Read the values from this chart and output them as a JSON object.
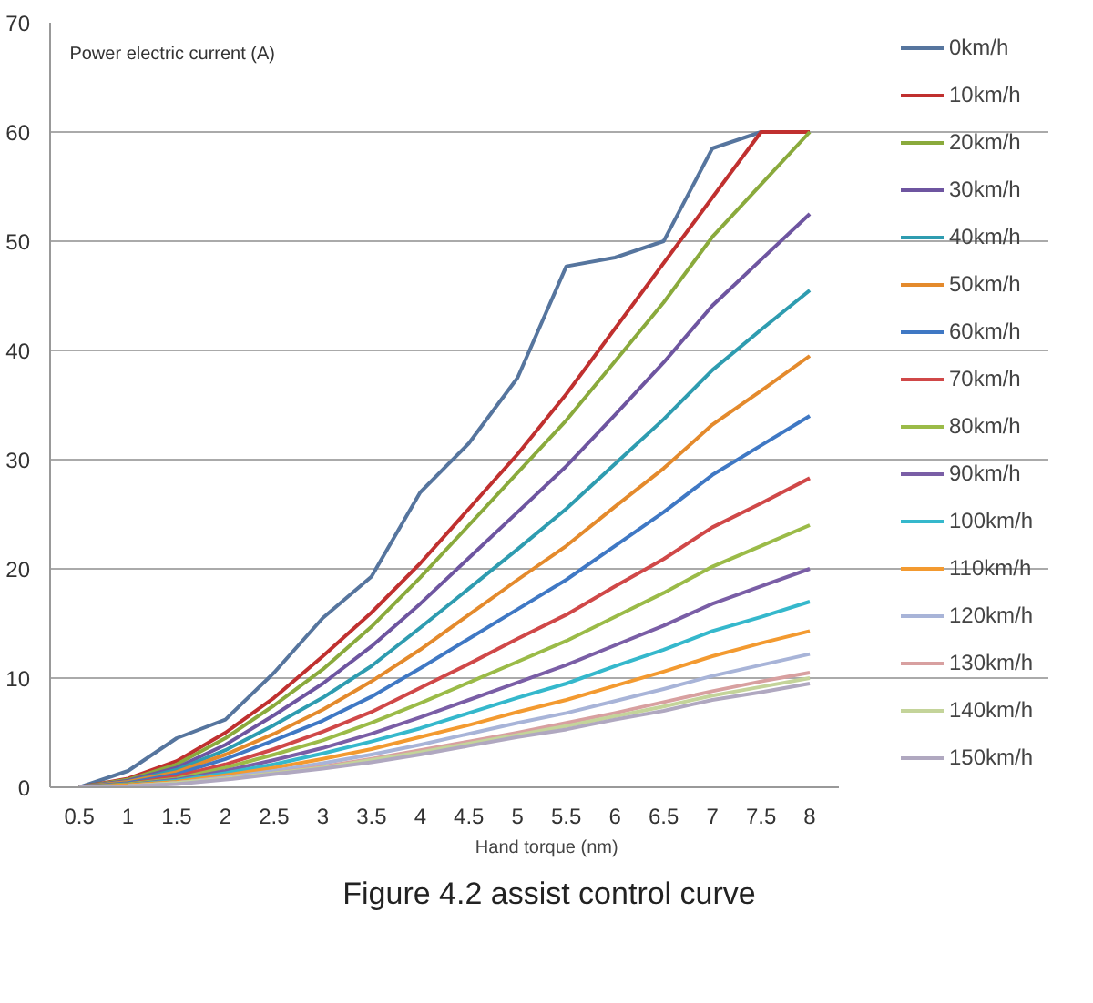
{
  "chart_data": {
    "type": "line",
    "title": "Figure 4.2 assist control curve",
    "xlabel": "Hand torque  (nm)",
    "ylabel": "Power electric current   (A)",
    "categories": [
      "0.5",
      "1",
      "1.5",
      "2",
      "2.5",
      "3",
      "3.5",
      "4",
      "4.5",
      "5",
      "5.5",
      "6",
      "6.5",
      "7",
      "7.5",
      "8"
    ],
    "ylim": [
      0,
      70
    ],
    "yticks": [
      0,
      10,
      20,
      30,
      40,
      50,
      60,
      70
    ],
    "grid": "y",
    "legend": "right",
    "marker": "none",
    "line_style": "solid",
    "series": [
      {
        "name": "0km/h",
        "color": "#56759e",
        "values": [
          0,
          1.5,
          4.5,
          6.2,
          10.5,
          15.5,
          19.3,
          27,
          31.5,
          37.5,
          47.7,
          48.5,
          50,
          58.5,
          60,
          60
        ]
      },
      {
        "name": "10km/h",
        "color": "#c0302f",
        "values": [
          0,
          0.8,
          2.4,
          5,
          8.2,
          12,
          16,
          20.5,
          25.5,
          30.5,
          36,
          42,
          48,
          54,
          60,
          60
        ]
      },
      {
        "name": "20km/h",
        "color": "#8aaa3c",
        "values": [
          0,
          0.7,
          2.1,
          4.5,
          7.5,
          10.8,
          14.7,
          19.2,
          24,
          28.8,
          33.6,
          39,
          44.4,
          50.4,
          55.2,
          60
        ]
      },
      {
        "name": "30km/h",
        "color": "#6e55a0",
        "values": [
          0,
          0.6,
          1.8,
          3.9,
          6.6,
          9.5,
          12.9,
          16.8,
          21,
          25.2,
          29.4,
          34.1,
          38.9,
          44.1,
          48.3,
          52.5
        ]
      },
      {
        "name": "40km/h",
        "color": "#2e9cb0",
        "values": [
          0,
          0.5,
          1.6,
          3.4,
          5.7,
          8.2,
          11.1,
          14.6,
          18.2,
          21.8,
          25.5,
          29.6,
          33.7,
          38.2,
          41.9,
          45.5
        ]
      },
      {
        "name": "50km/h",
        "color": "#e48a2c",
        "values": [
          0,
          0.5,
          1.4,
          3,
          4.9,
          7.1,
          9.7,
          12.6,
          15.8,
          19,
          22.1,
          25.7,
          29.2,
          33.2,
          36.3,
          39.5
        ]
      },
      {
        "name": "60km/h",
        "color": "#3f78c4",
        "values": [
          0,
          0.4,
          1.2,
          2.6,
          4.3,
          6.1,
          8.3,
          10.9,
          13.6,
          16.3,
          19,
          22.1,
          25.2,
          28.6,
          31.3,
          34
        ]
      },
      {
        "name": "70km/h",
        "color": "#d04848",
        "values": [
          0,
          0.3,
          1,
          2.1,
          3.5,
          5.1,
          6.9,
          9.1,
          11.3,
          13.6,
          15.8,
          18.4,
          20.9,
          23.8,
          26,
          28.3
        ]
      },
      {
        "name": "80km/h",
        "color": "#9bbb48",
        "values": [
          0,
          0.3,
          0.8,
          1.8,
          3,
          4.3,
          5.9,
          7.7,
          9.6,
          11.5,
          13.4,
          15.6,
          17.8,
          20.2,
          22.1,
          24
        ]
      },
      {
        "name": "90km/h",
        "color": "#7a5ea6",
        "values": [
          0,
          0.2,
          0.7,
          1.5,
          2.5,
          3.6,
          4.9,
          6.4,
          8,
          9.6,
          11.2,
          13,
          14.8,
          16.8,
          18.4,
          20
        ]
      },
      {
        "name": "100km/h",
        "color": "#35b8cc",
        "values": [
          0,
          0.2,
          0.6,
          1.3,
          2.1,
          3.1,
          4.2,
          5.4,
          6.8,
          8.2,
          9.5,
          11.1,
          12.6,
          14.3,
          15.6,
          17
        ]
      },
      {
        "name": "110km/h",
        "color": "#f39a30",
        "values": [
          0,
          0.2,
          0.5,
          1.1,
          1.8,
          2.6,
          3.5,
          4.6,
          5.7,
          6.9,
          8,
          9.3,
          10.6,
          12,
          13.2,
          14.3
        ]
      },
      {
        "name": "120km/h",
        "color": "#a8b4d8",
        "values": [
          0,
          0.1,
          0.4,
          0.9,
          1.5,
          2.2,
          3,
          3.9,
          4.9,
          5.9,
          6.8,
          7.9,
          9,
          10.2,
          11.2,
          12.2
        ]
      },
      {
        "name": "130km/h",
        "color": "#d8a0a0",
        "values": [
          0,
          0.1,
          0.4,
          0.8,
          1.3,
          1.9,
          2.6,
          3.4,
          4.2,
          5,
          5.9,
          6.8,
          7.8,
          8.8,
          9.7,
          10.5
        ]
      },
      {
        "name": "140km/h",
        "color": "#c4d49a",
        "values": [
          0,
          0.1,
          0.4,
          0.8,
          1.3,
          1.8,
          2.5,
          3.2,
          4,
          4.8,
          5.6,
          6.5,
          7.4,
          8.4,
          9.2,
          10
        ]
      },
      {
        "name": "150km/h",
        "color": "#b0a8c0",
        "values": [
          0,
          0.1,
          0.3,
          0.7,
          1.2,
          1.7,
          2.3,
          3,
          3.8,
          4.6,
          5.3,
          6.2,
          7,
          8,
          8.7,
          9.5
        ]
      }
    ]
  }
}
